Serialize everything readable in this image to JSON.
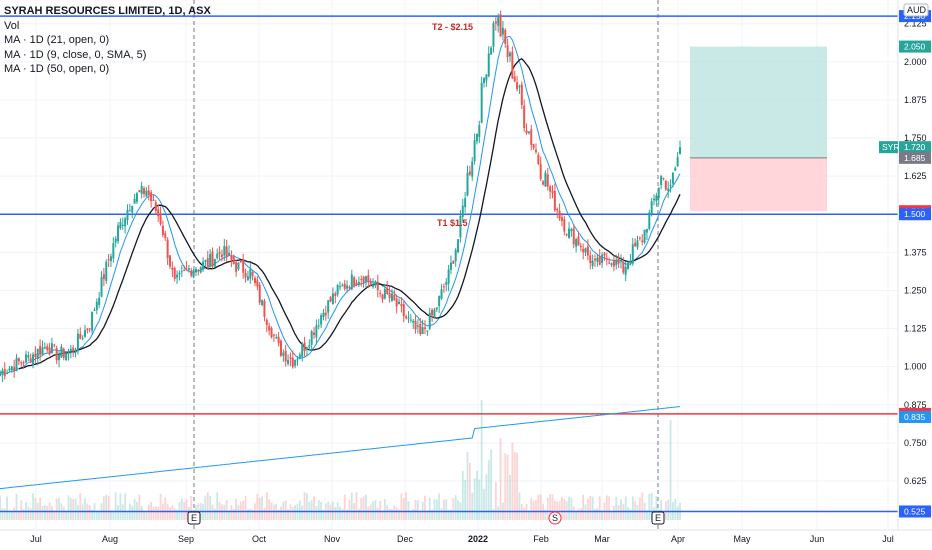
{
  "legend": {
    "title": "SYRAH RESOURCES LIMITED, 1D, ASX",
    "lines": [
      "Vol",
      "MA · 1D (21, open, 0)",
      "MA · 1D (9, close, 0, SMA, 5)",
      "MA · 1D (50, open, 0)"
    ]
  },
  "currency_badge": "AUD",
  "symbol_badge": "SYR",
  "colors": {
    "up": "#26a69a",
    "down": "#ef5350",
    "ma21": "#2196f3",
    "ma9": "#131722",
    "ma50": "#2196f3",
    "hline_blue": "#2962ff",
    "hline_red": "#f23645",
    "profit_zone": "#b2dfdb",
    "loss_zone": "#ffcdd2"
  },
  "chart_data": {
    "type": "candlestick",
    "x_axis_labels": [
      "Jul",
      "Aug",
      "Sep",
      "Oct",
      "Nov",
      "Dec",
      "2022",
      "Feb",
      "Mar",
      "Apr",
      "May",
      "Jun",
      "Jul"
    ],
    "y_axis_ticks": [
      "2.125",
      "2.000",
      "1.875",
      "1.750",
      "1.625",
      "1.500",
      "1.375",
      "1.250",
      "1.125",
      "1.000",
      "0.875",
      "0.750",
      "0.625"
    ],
    "y_range": [
      0.52,
      2.17
    ],
    "price_tags": [
      {
        "label": "2.150",
        "value": 2.15,
        "color": "#2962ff"
      },
      {
        "label": "2.050",
        "value": 2.05,
        "color": "#26a69a"
      },
      {
        "label": "1.720",
        "value": 1.72,
        "color": "#26a69a"
      },
      {
        "label": "1.685",
        "value": 1.685,
        "color": "#787b86"
      },
      {
        "label": "1.510",
        "value": 1.51,
        "color": "#f23645"
      },
      {
        "label": "1.500",
        "value": 1.5,
        "color": "#2962ff"
      },
      {
        "label": "0.845",
        "value": 0.845,
        "color": "#f23645"
      },
      {
        "label": "0.835",
        "value": 0.835,
        "color": "#2196f3"
      },
      {
        "label": "0.525",
        "value": 0.525,
        "color": "#2962ff"
      }
    ],
    "horizontal_lines": [
      {
        "value": 2.15,
        "color": "#2962ff"
      },
      {
        "value": 1.5,
        "color": "#2962ff"
      },
      {
        "value": 0.845,
        "color": "#f23645"
      },
      {
        "value": 0.525,
        "color": "#2962ff"
      }
    ],
    "annotations": [
      {
        "text": "T2 - $2.15",
        "value": 2.15
      },
      {
        "text": "T1 $1.5",
        "value": 1.5
      }
    ],
    "event_markers": [
      {
        "label": "E",
        "x_label": "Sep"
      },
      {
        "label": "S",
        "x_label": "Feb"
      },
      {
        "label": "E",
        "x_label": "Mar"
      }
    ],
    "position_tool": {
      "entry": 1.685,
      "target": 2.05,
      "stop": 1.51
    },
    "price_anchors": [
      [
        0,
        0.98
      ],
      [
        12,
        1.03
      ],
      [
        20,
        1.07
      ],
      [
        24,
        1.04
      ],
      [
        30,
        1.05
      ],
      [
        38,
        1.14
      ],
      [
        44,
        1.3
      ],
      [
        50,
        1.45
      ],
      [
        56,
        1.55
      ],
      [
        62,
        1.58
      ],
      [
        68,
        1.48
      ],
      [
        74,
        1.27
      ],
      [
        80,
        1.32
      ],
      [
        88,
        1.34
      ],
      [
        94,
        1.38
      ],
      [
        100,
        1.33
      ],
      [
        106,
        1.31
      ],
      [
        112,
        1.18
      ],
      [
        118,
        1.06
      ],
      [
        124,
        1.02
      ],
      [
        130,
        1.08
      ],
      [
        136,
        1.17
      ],
      [
        142,
        1.24
      ],
      [
        148,
        1.28
      ],
      [
        154,
        1.3
      ],
      [
        160,
        1.25
      ],
      [
        166,
        1.22
      ],
      [
        172,
        1.16
      ],
      [
        178,
        1.1
      ],
      [
        184,
        1.18
      ],
      [
        190,
        1.3
      ],
      [
        194,
        1.42
      ],
      [
        198,
        1.62
      ],
      [
        202,
        1.78
      ],
      [
        206,
        2.0
      ],
      [
        210,
        2.15
      ],
      [
        214,
        2.05
      ],
      [
        218,
        1.95
      ],
      [
        222,
        1.82
      ],
      [
        228,
        1.68
      ],
      [
        234,
        1.55
      ],
      [
        240,
        1.45
      ],
      [
        246,
        1.4
      ],
      [
        252,
        1.33
      ],
      [
        258,
        1.36
      ],
      [
        264,
        1.32
      ],
      [
        268,
        1.38
      ],
      [
        272,
        1.42
      ],
      [
        276,
        1.52
      ],
      [
        280,
        1.62
      ],
      [
        284,
        1.58
      ],
      [
        288,
        1.72
      ]
    ],
    "volume_base": 0.05
  }
}
